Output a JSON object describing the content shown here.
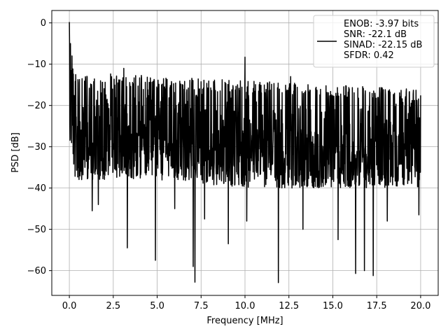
{
  "chart_data": {
    "type": "line",
    "title": "",
    "xlabel": "Frequency [MHz]",
    "ylabel": "PSD [dB]",
    "xlim": [
      -1.0,
      21.0
    ],
    "ylim": [
      -66.0,
      3.0
    ],
    "x_ticks": [
      0.0,
      2.5,
      5.0,
      7.5,
      10.0,
      12.5,
      15.0,
      17.5,
      20.0
    ],
    "x_tick_labels": [
      "0.0",
      "2.5",
      "5.0",
      "7.5",
      "10.0",
      "12.5",
      "15.0",
      "17.5",
      "20.0"
    ],
    "y_ticks": [
      0,
      -10,
      -20,
      -30,
      -40,
      -50,
      -60
    ],
    "y_tick_labels": [
      "0",
      "−10",
      "−20",
      "−30",
      "−40",
      "−50",
      "−60"
    ],
    "grid": true,
    "legend_position": "top-right",
    "legend_entries": [
      "ENOB: -3.97 bits",
      "SNR: -22.1 dB",
      "SINAD: -22.15 dB",
      "SFDR: 0.42"
    ],
    "series": [
      {
        "color": "#000000",
        "x_range": [
          0.0,
          20.0
        ],
        "points": 1600,
        "upper_envelope": [
          [
            0.0,
            -2
          ],
          [
            0.1,
            -9
          ],
          [
            0.5,
            -12
          ],
          [
            2.0,
            -12
          ],
          [
            5.0,
            -13
          ],
          [
            10.0,
            -14
          ],
          [
            15.0,
            -15
          ],
          [
            20.0,
            -16
          ]
        ],
        "lower_envelope": [
          [
            0.0,
            -29
          ],
          [
            0.3,
            -38
          ],
          [
            1.0,
            -38
          ],
          [
            5.0,
            -38
          ],
          [
            10.0,
            -40
          ],
          [
            15.0,
            -40
          ],
          [
            20.0,
            -40
          ]
        ],
        "peaks": [
          [
            0.0,
            0.2
          ],
          [
            0.06,
            -5
          ],
          [
            0.15,
            -8
          ],
          [
            10.0,
            -8.3
          ],
          [
            3.1,
            -11
          ],
          [
            12.6,
            -13
          ]
        ],
        "deep_dips": [
          [
            1.3,
            -45.5
          ],
          [
            1.65,
            -44
          ],
          [
            3.3,
            -54.5
          ],
          [
            4.9,
            -57.5
          ],
          [
            7.05,
            -59
          ],
          [
            7.15,
            -62.8
          ],
          [
            7.7,
            -47.5
          ],
          [
            9.05,
            -53.5
          ],
          [
            11.9,
            -62.9
          ],
          [
            16.3,
            -60.7
          ],
          [
            16.8,
            -60
          ],
          [
            17.3,
            -61.2
          ],
          [
            15.3,
            -52.5
          ],
          [
            18.1,
            -48
          ],
          [
            19.9,
            -46.5
          ],
          [
            6.0,
            -45
          ],
          [
            13.3,
            -50
          ],
          [
            10.1,
            -48
          ]
        ]
      }
    ]
  }
}
